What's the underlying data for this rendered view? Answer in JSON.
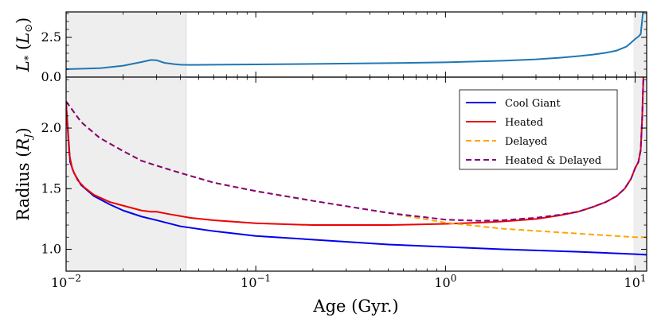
{
  "chart_data": [
    {
      "type": "line",
      "panel": "top",
      "ylabel": "L_* (L_⊙)",
      "xscale": "log",
      "xlim": [
        0.01,
        11.5
      ],
      "ylim": [
        0,
        4.1
      ],
      "yticks": [
        0.0,
        2.5
      ],
      "ytick_labels": [
        "0.0",
        "2.5"
      ],
      "shaded_regions": [
        [
          0.01,
          0.043
        ],
        [
          9.8,
          11.5
        ]
      ],
      "series": [
        {
          "color": "#1f77b4",
          "x": [
            0.01,
            0.015,
            0.02,
            0.025,
            0.028,
            0.03,
            0.033,
            0.037,
            0.04,
            0.045,
            0.06,
            0.1,
            0.2,
            0.5,
            1,
            2,
            3,
            4,
            5,
            6,
            7,
            8,
            9,
            9.8,
            10,
            10.4,
            10.7,
            11,
            11.1,
            11.2
          ],
          "y": [
            0.5,
            0.56,
            0.72,
            0.95,
            1.08,
            1.06,
            0.9,
            0.82,
            0.78,
            0.77,
            0.78,
            0.8,
            0.83,
            0.88,
            0.93,
            1.03,
            1.12,
            1.22,
            1.32,
            1.42,
            1.53,
            1.67,
            1.92,
            2.3,
            2.4,
            2.55,
            2.7,
            4.1,
            4.1,
            4.1
          ]
        }
      ]
    },
    {
      "type": "line",
      "panel": "bottom",
      "xlabel": "Age (Gyr.)",
      "ylabel": "Radius (R_J)",
      "xscale": "log",
      "xlim": [
        0.01,
        11.5
      ],
      "ylim": [
        0.82,
        2.42
      ],
      "xticks": [
        0.01,
        0.1,
        1,
        10
      ],
      "xtick_labels": [
        [
          "10",
          "−2"
        ],
        [
          "10",
          "−1"
        ],
        [
          "10",
          "0"
        ],
        [
          "10",
          "1"
        ]
      ],
      "yticks": [
        1.0,
        1.5,
        2.0
      ],
      "ytick_labels": [
        "1.0",
        "1.5",
        "2.0"
      ],
      "shaded_regions": [
        [
          0.01,
          0.043
        ],
        [
          9.8,
          11.5
        ]
      ],
      "legend": "top-right",
      "series": [
        {
          "name": "Cool Giant",
          "color": "#0000ee",
          "dash": "solid",
          "x": [
            0.01,
            0.0105,
            0.011,
            0.012,
            0.014,
            0.017,
            0.02,
            0.025,
            0.03,
            0.04,
            0.06,
            0.1,
            0.2,
            0.5,
            1,
            2,
            5,
            10,
            11.5
          ],
          "y": [
            2.2,
            1.72,
            1.63,
            1.53,
            1.44,
            1.37,
            1.32,
            1.27,
            1.24,
            1.19,
            1.15,
            1.11,
            1.08,
            1.04,
            1.02,
            1.0,
            0.98,
            0.96,
            0.955
          ]
        },
        {
          "name": "Heated",
          "color": "#ee0000",
          "dash": "solid",
          "x": [
            0.01,
            0.0104,
            0.0108,
            0.0115,
            0.0125,
            0.014,
            0.017,
            0.02,
            0.025,
            0.028,
            0.03,
            0.035,
            0.045,
            0.06,
            0.1,
            0.2,
            0.5,
            1,
            1.5,
            2,
            3,
            4,
            5,
            6,
            7,
            8,
            8.8,
            9.5,
            10,
            10.4,
            10.7,
            10.9,
            11.05
          ],
          "y": [
            2.2,
            1.78,
            1.66,
            1.57,
            1.51,
            1.45,
            1.39,
            1.36,
            1.32,
            1.31,
            1.31,
            1.29,
            1.26,
            1.24,
            1.215,
            1.2,
            1.2,
            1.21,
            1.22,
            1.23,
            1.25,
            1.28,
            1.31,
            1.35,
            1.39,
            1.44,
            1.5,
            1.58,
            1.67,
            1.72,
            1.82,
            2.1,
            2.42
          ]
        },
        {
          "name": "Delayed",
          "color": "#ffa500",
          "dash": "dashed",
          "x": [
            0.01,
            0.012,
            0.015,
            0.02,
            0.025,
            0.03,
            0.04,
            0.06,
            0.1,
            0.2,
            0.5,
            1,
            2,
            5,
            10,
            11.5
          ],
          "y": [
            2.22,
            2.05,
            1.92,
            1.81,
            1.73,
            1.69,
            1.63,
            1.55,
            1.48,
            1.4,
            1.3,
            1.22,
            1.17,
            1.13,
            1.1,
            1.1
          ]
        },
        {
          "name": "Heated & Delayed",
          "color": "#800080",
          "dash": "dashed",
          "x": [
            0.01,
            0.012,
            0.015,
            0.02,
            0.025,
            0.03,
            0.04,
            0.06,
            0.1,
            0.2,
            0.5,
            1,
            1.5,
            2,
            3,
            4,
            5,
            6,
            7,
            8,
            8.8,
            9.5,
            10,
            10.4,
            10.7,
            10.9,
            11.05
          ],
          "y": [
            2.22,
            2.05,
            1.92,
            1.81,
            1.73,
            1.69,
            1.63,
            1.55,
            1.48,
            1.4,
            1.3,
            1.245,
            1.235,
            1.24,
            1.26,
            1.285,
            1.31,
            1.35,
            1.39,
            1.44,
            1.5,
            1.58,
            1.67,
            1.72,
            1.82,
            2.1,
            2.42
          ]
        }
      ]
    }
  ]
}
